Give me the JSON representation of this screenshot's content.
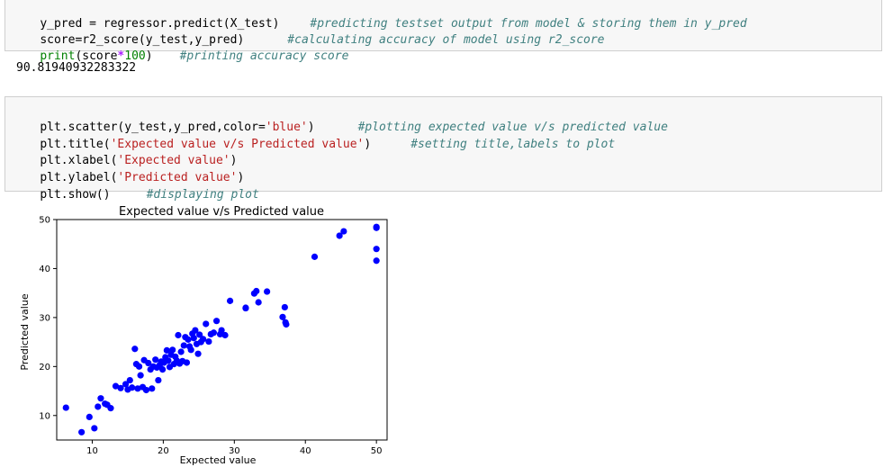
{
  "cell1": {
    "line1": {
      "code": "y_pred = regressor.predict(X_test)",
      "comment": "#predicting testset output from model & storing them in y_pred"
    },
    "line2": {
      "code": "score=r2_score(y_test,y_pred)",
      "comment": "#calculating accuracy of model using r2_score"
    },
    "line3": {
      "kw": "print",
      "code_a": "(score",
      "op": "*",
      "num": "100",
      "code_b": ")",
      "comment": "#printing accuracy score"
    }
  },
  "output1": "90.81940932283322",
  "cell2": {
    "line1": {
      "pre": "plt.scatter(y_test,y_pred,color=",
      "str": "'blue'",
      "post": ")",
      "comment": "#plotting expected value v/s predicted value"
    },
    "line2": {
      "pre": "plt.title(",
      "str": "'Expected value v/s Predicted value'",
      "post": ")",
      "comment": "#setting title,labels to plot"
    },
    "line3": {
      "pre": "plt.xlabel(",
      "str": "'Expected value'",
      "post": ")"
    },
    "line4": {
      "pre": "plt.ylabel(",
      "str": "'Predicted value'",
      "post": ")"
    },
    "line5": {
      "pre": "plt.show()",
      "comment": "#displaying plot"
    }
  },
  "chart_data": {
    "type": "scatter",
    "title": "Expected value v/s Predicted value",
    "xlabel": "Expected value",
    "ylabel": "Predicted value",
    "xlim": [
      5,
      51.5
    ],
    "ylim": [
      5,
      50
    ],
    "xticks": [
      10,
      20,
      30,
      40,
      50
    ],
    "yticks": [
      10,
      20,
      30,
      40,
      50
    ],
    "grid": false,
    "color": "#0000ff",
    "x": [
      6.3,
      8.5,
      9.6,
      10.3,
      10.8,
      11.2,
      11.8,
      12.1,
      12.6,
      13.3,
      14.0,
      14.7,
      15.0,
      15.3,
      15.6,
      16.0,
      16.2,
      16.4,
      16.6,
      16.8,
      17.1,
      17.3,
      17.6,
      17.9,
      18.2,
      18.4,
      18.6,
      18.9,
      19.1,
      19.3,
      19.5,
      19.7,
      19.9,
      20.1,
      20.3,
      20.5,
      20.7,
      20.9,
      21.1,
      21.3,
      21.5,
      21.7,
      21.9,
      22.1,
      22.3,
      22.5,
      22.7,
      22.9,
      23.1,
      23.3,
      23.5,
      23.7,
      23.9,
      24.1,
      24.3,
      24.5,
      24.7,
      24.9,
      25.1,
      25.3,
      25.6,
      26.0,
      26.4,
      26.7,
      27.1,
      27.5,
      28.0,
      28.2,
      28.7,
      29.4,
      31.6,
      31.6,
      32.8,
      33.1,
      33.4,
      34.6,
      36.8,
      37.1,
      37.2,
      37.3,
      41.3,
      44.8,
      45.4,
      50.0,
      50.0,
      50.0,
      50.0
    ],
    "y": [
      11.6,
      6.6,
      9.7,
      7.4,
      11.8,
      13.5,
      12.4,
      12.2,
      11.5,
      16.0,
      15.6,
      16.4,
      15.3,
      17.2,
      15.7,
      23.6,
      20.5,
      15.5,
      20.0,
      18.2,
      15.8,
      21.3,
      15.2,
      20.7,
      19.4,
      15.5,
      20.0,
      21.4,
      19.8,
      17.2,
      20.3,
      21.0,
      19.4,
      20.8,
      21.9,
      23.3,
      21.2,
      19.9,
      22.4,
      23.4,
      20.5,
      22.0,
      21.2,
      26.4,
      20.6,
      23.0,
      21.1,
      24.3,
      26.0,
      20.8,
      25.5,
      24.1,
      23.4,
      26.7,
      25.8,
      27.4,
      24.6,
      22.6,
      26.5,
      25.0,
      25.6,
      28.7,
      25.1,
      26.6,
      26.9,
      29.3,
      26.6,
      27.4,
      26.4,
      33.4,
      32.0,
      31.9,
      34.9,
      35.4,
      33.1,
      35.3,
      30.1,
      32.1,
      29.0,
      28.6,
      42.4,
      46.7,
      47.6,
      44.0,
      41.6,
      48.3,
      48.5
    ]
  }
}
